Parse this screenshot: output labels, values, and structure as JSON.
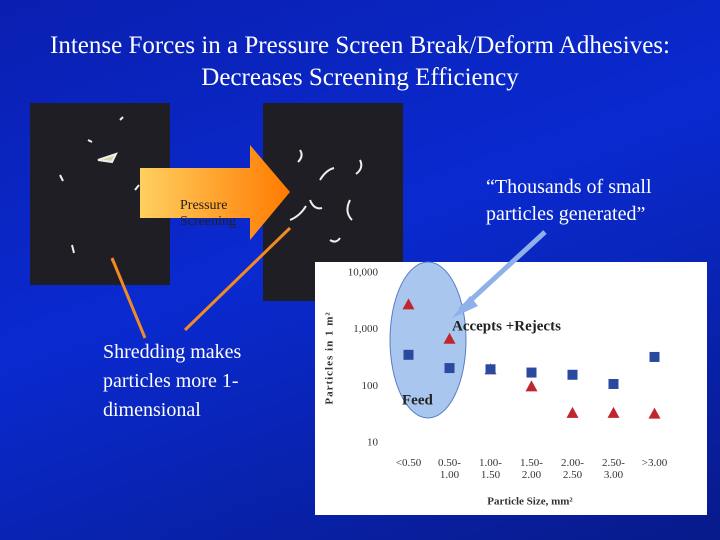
{
  "title": [
    "Intense Forces in a Pressure Screen Break/Deform Adhesives:",
    "Decreases Screening Efficiency"
  ],
  "arrow_label": "Pressure Screening",
  "left_note": "Shredding makes particles more 1-dimensional",
  "quote": "“Thousands of small particles generated”",
  "chart_data": {
    "type": "scatter",
    "y_label": "Particles in 1 m²",
    "x_label": "Particle Size, mm²",
    "categories": [
      "<0.50",
      "0.50-1.00",
      "1.00-1.50",
      "1.50-2.00",
      "2.00-2.50",
      "2.50-3.00",
      ">3.00"
    ],
    "series": [
      {
        "name": "Accepts +Rejects",
        "color": "#c0262d",
        "marker": "triangle",
        "values": [
          2800,
          690,
          200,
          100,
          34,
          34,
          33
        ]
      },
      {
        "name": "Feed",
        "color": "#2a4aa0",
        "marker": "square",
        "values": [
          360,
          210,
          200,
          175,
          160,
          110,
          330
        ]
      }
    ],
    "yscale": "log",
    "ylim": [
      10,
      10000
    ],
    "yticks": [
      {
        "value": 10000,
        "label": "10,000"
      },
      {
        "value": 1000,
        "label": "1,000"
      },
      100,
      10
    ],
    "grid": false
  }
}
